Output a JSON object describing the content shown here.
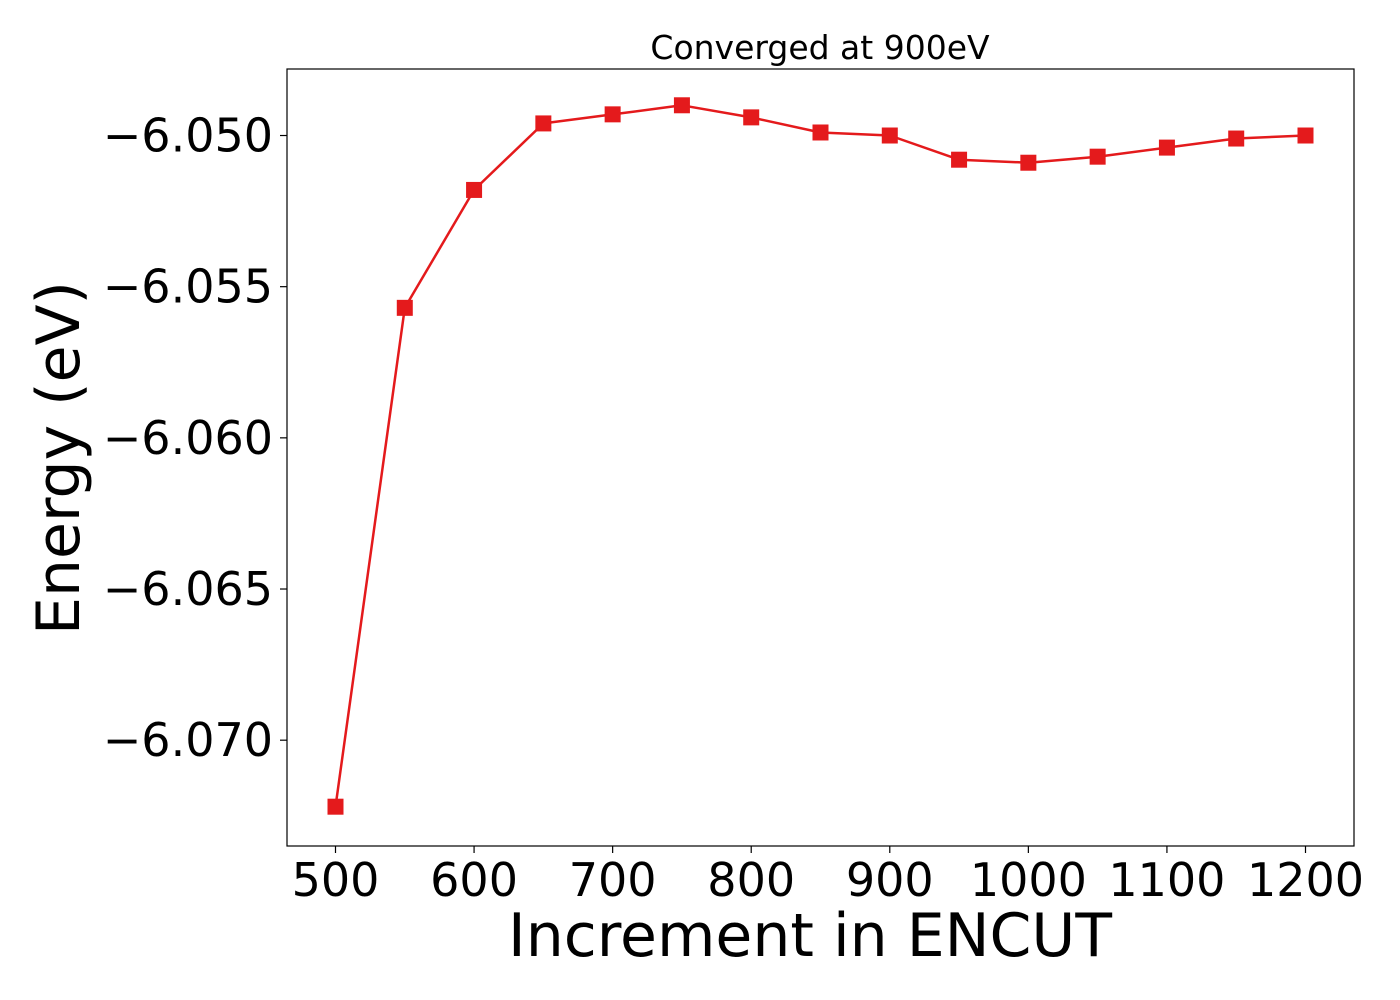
{
  "chart_data": {
    "type": "line",
    "title": "Converged at 900eV",
    "xlabel": "Increment in ENCUT",
    "ylabel": "Energy (eV)",
    "xlim": [
      465,
      1235
    ],
    "ylim": [
      -6.0735,
      -6.0478
    ],
    "x_ticks": [
      500,
      600,
      700,
      800,
      900,
      1000,
      1100,
      1200
    ],
    "x_tick_labels": [
      "500",
      "600",
      "700",
      "800",
      "900",
      "1000",
      "1100",
      "1200"
    ],
    "y_ticks": [
      -6.05,
      -6.055,
      -6.06,
      -6.065,
      -6.07
    ],
    "y_tick_labels": [
      "−6.050",
      "−6.055",
      "−6.060",
      "−6.065",
      "−6.070"
    ],
    "grid": false,
    "series": [
      {
        "color": "#e41a1c",
        "marker": "square",
        "x": [
          500,
          550,
          600,
          650,
          700,
          750,
          800,
          850,
          900,
          950,
          1000,
          1050,
          1100,
          1150,
          1200
        ],
        "y": [
          -6.0722,
          -6.0557,
          -6.0518,
          -6.0496,
          -6.0493,
          -6.049,
          -6.0494,
          -6.0499,
          -6.05,
          -6.0508,
          -6.0509,
          -6.0507,
          -6.0504,
          -6.0501,
          -6.05
        ]
      }
    ]
  }
}
